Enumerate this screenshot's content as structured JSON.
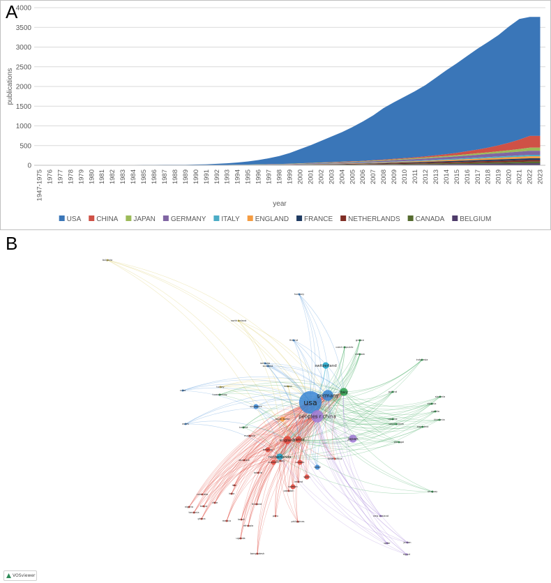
{
  "panel_a": {
    "letter": "A"
  },
  "panel_b": {
    "letter": "B"
  },
  "vosviewer_badge": "VOSviewer",
  "colors": {
    "USA": "#3a76b8",
    "CHINA": "#cf5146",
    "JAPAN": "#9cbb59",
    "GERMANY": "#8065a3",
    "ITALY": "#4bacc6",
    "ENGLAND": "#f59c42",
    "FRANCE": "#1f3b62",
    "NETHERLANDS": "#7f2d24",
    "CANADA": "#556b2f",
    "BELGIUM": "#4e3b6a"
  },
  "chart_data": {
    "type": "area",
    "stacked": true,
    "xlabel": "year",
    "ylabel": "publications",
    "ylim": [
      0,
      4000
    ],
    "yticks": [
      0,
      500,
      1000,
      1500,
      2000,
      2500,
      3000,
      3500,
      4000
    ],
    "grid": true,
    "legend_position": "bottom",
    "categories": [
      "1947-1975",
      "1976",
      "1977",
      "1978",
      "1979",
      "1980",
      "1981",
      "1982",
      "1983",
      "1984",
      "1985",
      "1986",
      "1987",
      "1988",
      "1989",
      "1990",
      "1991",
      "1992",
      "1993",
      "1994",
      "1995",
      "1996",
      "1997",
      "1998",
      "1999",
      "2000",
      "2001",
      "2002",
      "2003",
      "2004",
      "2005",
      "2006",
      "2007",
      "2008",
      "2009",
      "2010",
      "2011",
      "2012",
      "2013",
      "2014",
      "2015",
      "2016",
      "2017",
      "2018",
      "2019",
      "2020",
      "2021",
      "2022",
      "2023"
    ],
    "series": [
      {
        "name": "BELGIUM",
        "values": [
          0,
          0,
          0,
          0,
          0,
          0,
          0,
          0,
          0,
          0,
          0,
          0,
          0,
          0,
          0,
          0,
          0,
          0,
          0,
          1,
          1,
          2,
          2,
          3,
          3,
          4,
          5,
          6,
          7,
          8,
          9,
          10,
          12,
          14,
          16,
          18,
          20,
          22,
          25,
          28,
          30,
          33,
          36,
          39,
          42,
          45,
          48,
          52,
          52
        ]
      },
      {
        "name": "CANADA",
        "values": [
          0,
          0,
          0,
          0,
          0,
          0,
          0,
          0,
          0,
          0,
          0,
          0,
          0,
          0,
          0,
          0,
          0,
          1,
          1,
          1,
          2,
          2,
          3,
          3,
          4,
          5,
          5,
          6,
          7,
          8,
          9,
          10,
          12,
          13,
          15,
          17,
          18,
          20,
          22,
          24,
          26,
          28,
          30,
          32,
          34,
          36,
          38,
          40,
          40
        ]
      },
      {
        "name": "NETHERLANDS",
        "values": [
          0,
          0,
          0,
          0,
          0,
          0,
          0,
          0,
          0,
          0,
          0,
          0,
          0,
          0,
          0,
          0,
          0,
          1,
          1,
          1,
          2,
          2,
          3,
          3,
          4,
          5,
          6,
          7,
          8,
          9,
          10,
          12,
          13,
          15,
          17,
          19,
          21,
          23,
          25,
          27,
          29,
          31,
          33,
          35,
          37,
          39,
          41,
          43,
          43
        ]
      },
      {
        "name": "FRANCE",
        "values": [
          0,
          0,
          0,
          0,
          0,
          0,
          0,
          0,
          0,
          0,
          0,
          0,
          0,
          0,
          0,
          0,
          0,
          1,
          1,
          1,
          2,
          2,
          3,
          3,
          4,
          5,
          6,
          7,
          8,
          9,
          10,
          11,
          13,
          14,
          16,
          18,
          20,
          22,
          24,
          26,
          28,
          30,
          32,
          34,
          36,
          38,
          40,
          42,
          42
        ]
      },
      {
        "name": "ENGLAND",
        "values": [
          0,
          0,
          0,
          0,
          0,
          0,
          0,
          0,
          0,
          0,
          0,
          0,
          0,
          0,
          0,
          0,
          1,
          1,
          1,
          2,
          2,
          3,
          3,
          4,
          5,
          6,
          7,
          8,
          9,
          10,
          11,
          12,
          14,
          16,
          18,
          20,
          22,
          24,
          26,
          28,
          30,
          33,
          36,
          39,
          42,
          45,
          48,
          52,
          52
        ]
      },
      {
        "name": "ITALY",
        "values": [
          0,
          0,
          0,
          0,
          0,
          0,
          0,
          0,
          0,
          0,
          0,
          0,
          0,
          0,
          0,
          0,
          0,
          1,
          1,
          1,
          1,
          2,
          2,
          3,
          3,
          4,
          5,
          6,
          7,
          8,
          9,
          10,
          11,
          12,
          13,
          14,
          15,
          17,
          19,
          21,
          23,
          25,
          27,
          29,
          31,
          33,
          35,
          37,
          37
        ]
      },
      {
        "name": "GERMANY",
        "values": [
          0,
          0,
          0,
          0,
          0,
          0,
          0,
          0,
          0,
          0,
          0,
          0,
          0,
          0,
          0,
          1,
          1,
          2,
          2,
          3,
          4,
          5,
          6,
          7,
          8,
          10,
          12,
          14,
          16,
          18,
          20,
          23,
          26,
          29,
          33,
          37,
          41,
          45,
          50,
          55,
          60,
          66,
          72,
          78,
          84,
          90,
          96,
          100,
          100
        ]
      },
      {
        "name": "JAPAN",
        "values": [
          0,
          0,
          0,
          0,
          0,
          0,
          0,
          0,
          0,
          0,
          0,
          0,
          0,
          0,
          0,
          0,
          1,
          1,
          2,
          2,
          3,
          4,
          5,
          6,
          7,
          8,
          9,
          10,
          11,
          12,
          13,
          14,
          15,
          16,
          18,
          20,
          22,
          24,
          26,
          28,
          31,
          34,
          38,
          42,
          48,
          55,
          65,
          80,
          80
        ]
      },
      {
        "name": "CHINA",
        "values": [
          0,
          0,
          0,
          0,
          0,
          0,
          0,
          0,
          0,
          0,
          0,
          0,
          0,
          0,
          0,
          0,
          0,
          0,
          0,
          1,
          1,
          1,
          2,
          2,
          3,
          4,
          5,
          6,
          7,
          8,
          9,
          10,
          12,
          14,
          16,
          19,
          23,
          28,
          35,
          45,
          58,
          75,
          95,
          120,
          150,
          190,
          240,
          300,
          300
        ]
      },
      {
        "name": "USA",
        "values": [
          0,
          0,
          2,
          3,
          4,
          5,
          6,
          7,
          8,
          9,
          10,
          11,
          12,
          13,
          15,
          18,
          22,
          30,
          42,
          58,
          80,
          110,
          150,
          200,
          270,
          360,
          450,
          550,
          650,
          750,
          870,
          1000,
          1140,
          1310,
          1440,
          1560,
          1680,
          1810,
          1970,
          2130,
          2270,
          2420,
          2560,
          2680,
          2800,
          2950,
          3060,
          3020,
          3020
        ]
      }
    ]
  },
  "legend_order": [
    "USA",
    "CHINA",
    "JAPAN",
    "GERMANY",
    "ITALY",
    "ENGLAND",
    "FRANCE",
    "NETHERLANDS",
    "CANADA",
    "BELGIUM"
  ],
  "network": {
    "nodes": [
      {
        "label": "usa",
        "weight": 14,
        "color": "#3a86d4"
      },
      {
        "label": "peoples r china",
        "weight": 7,
        "color": "#a07ad6"
      },
      {
        "label": "germany",
        "weight": 6,
        "color": "#3a86d4"
      },
      {
        "label": "italy",
        "weight": 4,
        "color": "#2ca04c"
      },
      {
        "label": "japan",
        "weight": 4,
        "color": "#a07ad6"
      },
      {
        "label": "switzerland",
        "weight": 3,
        "color": "#17a2c8"
      },
      {
        "label": "netherlands",
        "weight": 3,
        "color": "#17a2c8"
      },
      {
        "label": "england",
        "weight": 4,
        "color": "#e0453a"
      },
      {
        "label": "france",
        "weight": 3,
        "color": "#e0453a"
      },
      {
        "label": "south korea",
        "weight": 2,
        "color": "#f59c42"
      },
      {
        "label": "australia",
        "weight": 2,
        "color": "#e0453a"
      },
      {
        "label": "canada",
        "weight": 2,
        "color": "#e0453a"
      },
      {
        "label": "spain",
        "weight": 2,
        "color": "#e0453a"
      },
      {
        "label": "singapore",
        "weight": 2,
        "color": "#3a86d4"
      },
      {
        "label": "israel",
        "weight": 2,
        "color": "#3a86d4"
      },
      {
        "label": "belgium",
        "weight": 2,
        "color": "#e0453a"
      },
      {
        "label": "sweden",
        "weight": 2,
        "color": "#e0453a"
      },
      {
        "label": "denmark",
        "weight": 1,
        "color": "#e0453a"
      },
      {
        "label": "austria",
        "weight": 1,
        "color": "#e0453a"
      },
      {
        "label": "india",
        "weight": 1,
        "color": "#e0453a"
      },
      {
        "label": "brazil",
        "weight": 1,
        "color": "#e0453a"
      },
      {
        "label": "greece",
        "weight": 1,
        "color": "#2ca04c"
      },
      {
        "label": "portugal",
        "weight": 1,
        "color": "#2ca04c"
      },
      {
        "label": "poland",
        "weight": 1,
        "color": "#2ca04c"
      },
      {
        "label": "turkey",
        "weight": 1,
        "color": "#d4c34a"
      },
      {
        "label": "taiwan",
        "weight": 1,
        "color": "#d4c34a"
      },
      {
        "label": "hungary",
        "weight": 1,
        "color": "#3a86d4"
      },
      {
        "label": "czech republic",
        "weight": 1,
        "color": "#2ca04c"
      },
      {
        "label": "finland",
        "weight": 1,
        "color": "#3a86d4"
      },
      {
        "label": "norway",
        "weight": 1,
        "color": "#e0453a"
      },
      {
        "label": "ireland",
        "weight": 1,
        "color": "#e0453a"
      },
      {
        "label": "mexico",
        "weight": 1,
        "color": "#e0453a"
      },
      {
        "label": "chile",
        "weight": 1,
        "color": "#e0453a"
      },
      {
        "label": "argentina",
        "weight": 1,
        "color": "#2ca04c"
      },
      {
        "label": "south africa",
        "weight": 1,
        "color": "#e0453a"
      },
      {
        "label": "egypt",
        "weight": 1,
        "color": "#a07ad6"
      },
      {
        "label": "saudi arabia",
        "weight": 1,
        "color": "#2ca04c"
      },
      {
        "label": "iran",
        "weight": 1,
        "color": "#e0453a"
      },
      {
        "label": "thailand",
        "weight": 1,
        "color": "#e0453a"
      },
      {
        "label": "pakistan",
        "weight": 1,
        "color": "#e0453a"
      },
      {
        "label": "new zealand",
        "weight": 1,
        "color": "#a07ad6"
      },
      {
        "label": "bulgaria",
        "weight": 1,
        "color": "#d4c34a"
      },
      {
        "label": "romania",
        "weight": 1,
        "color": "#3a86d4"
      },
      {
        "label": "slovenia",
        "weight": 1,
        "color": "#2ca04c"
      },
      {
        "label": "lithuania",
        "weight": 1,
        "color": "#2ca04c"
      },
      {
        "label": "uruguay",
        "weight": 1,
        "color": "#2ca04c"
      },
      {
        "label": "nigeria",
        "weight": 1,
        "color": "#e0453a"
      },
      {
        "label": "kenya",
        "weight": 1,
        "color": "#e0453a"
      },
      {
        "label": "ghana",
        "weight": 1,
        "color": "#e0453a"
      },
      {
        "label": "uganda",
        "weight": 1,
        "color": "#e0453a"
      },
      {
        "label": "bangladesh",
        "weight": 1,
        "color": "#e0453a"
      },
      {
        "label": "colombia",
        "weight": 1,
        "color": "#e0453a"
      },
      {
        "label": "peru",
        "weight": 1,
        "color": "#e0453a"
      },
      {
        "label": "malaysia",
        "weight": 1,
        "color": "#e0453a"
      },
      {
        "label": "indonesia",
        "weight": 1,
        "color": "#2ca04c"
      },
      {
        "label": "vietnam",
        "weight": 1,
        "color": "#2ca04c"
      },
      {
        "label": "cuba",
        "weight": 1,
        "color": "#3a86d4"
      },
      {
        "label": "north ireland",
        "weight": 1,
        "color": "#d4c34a"
      },
      {
        "label": "scotland",
        "weight": 1,
        "color": "#3a86d4"
      },
      {
        "label": "wales",
        "weight": 1,
        "color": "#3a86d4"
      },
      {
        "label": "luxembourg",
        "weight": 1,
        "color": "#2ca04c"
      },
      {
        "label": "iceland",
        "weight": 1,
        "color": "#2ca04c"
      },
      {
        "label": "estonia",
        "weight": 1,
        "color": "#2ca04c"
      },
      {
        "label": "croatia",
        "weight": 1,
        "color": "#2ca04c"
      },
      {
        "label": "ukraine",
        "weight": 1,
        "color": "#2ca04c"
      },
      {
        "label": "philippines",
        "weight": 1,
        "color": "#e0453a"
      },
      {
        "label": "ethiopia",
        "weight": 1,
        "color": "#e0453a"
      },
      {
        "label": "tanzania",
        "weight": 1,
        "color": "#e0453a"
      },
      {
        "label": "qatar",
        "weight": 1,
        "color": "#a07ad6"
      },
      {
        "label": "jordan",
        "weight": 1,
        "color": "#a07ad6"
      }
    ]
  }
}
